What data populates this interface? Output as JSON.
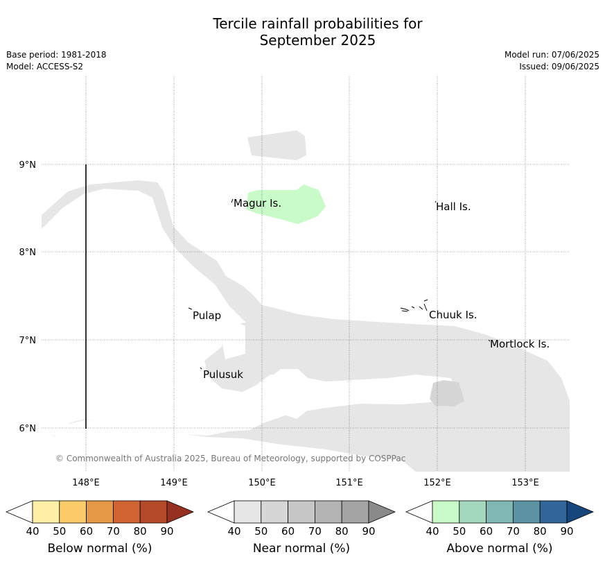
{
  "title_line1": "Tercile rainfall probabilities for",
  "title_line2": "September 2025",
  "meta_left": [
    "Base period: 1981-2018",
    "Model: ACCESS-S2"
  ],
  "meta_right": [
    "Model run: 07/06/2025",
    "Issued: 09/06/2025"
  ],
  "copyright": "© Commonwealth of Australia 2025, Bureau of Meteorology, supported by COSPPac",
  "lon_ticks": [
    "148°E",
    "149°E",
    "150°E",
    "151°E",
    "152°E",
    "153°E"
  ],
  "lat_ticks": [
    "9°N",
    "8°N",
    "7°N",
    "6°N"
  ],
  "places": [
    {
      "name": "Magur Is."
    },
    {
      "name": "Hall Is."
    },
    {
      "name": "Pulap"
    },
    {
      "name": "Chuuk Is."
    },
    {
      "name": "Mortlock Is."
    },
    {
      "name": "Pulusuk"
    }
  ],
  "colorbars": [
    {
      "label": "Below normal (%)",
      "ticks": [
        "40",
        "50",
        "60",
        "70",
        "80",
        "90"
      ],
      "colors": [
        "#fff0a8",
        "#fdcb6a",
        "#e59846",
        "#cf6432",
        "#b44a28",
        "#963020"
      ]
    },
    {
      "label": "Near normal (%)",
      "ticks": [
        "40",
        "50",
        "60",
        "70",
        "80",
        "90"
      ],
      "colors": [
        "#e6e6e6",
        "#d6d6d6",
        "#c6c6c6",
        "#b4b4b4",
        "#a4a4a4",
        "#8a8a8a"
      ]
    },
    {
      "label": "Above normal (%)",
      "ticks": [
        "40",
        "50",
        "60",
        "70",
        "80",
        "90"
      ],
      "colors": [
        "#c8fbc8",
        "#a4d8bc",
        "#80b7b2",
        "#5b93a4",
        "#336698",
        "#16467c"
      ]
    }
  ],
  "legend_colors": {
    "near_normal_fill": "#e6e6e6",
    "above_normal_fill": "#c8fbc8",
    "near_dark_fill": "#d6d6d6"
  }
}
